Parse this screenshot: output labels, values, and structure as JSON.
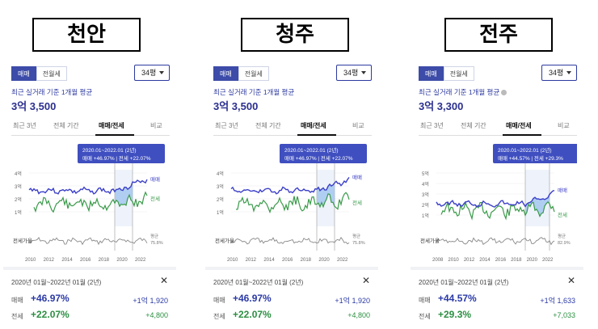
{
  "panels": [
    {
      "city": "천안",
      "segments": [
        "매매",
        "전월세"
      ],
      "pyeong": "34평",
      "subtitle": "최근 실거래 기준 1개월 평균",
      "price": "3억 3,500",
      "tabs": [
        "최근 3년",
        "전체 기간",
        "매매/전세",
        "비교"
      ],
      "active_tab": "매매/전세",
      "tooltip_line1": "2020.01~2022.01 (2년)",
      "tooltip_line2": "매매 +46.97% | 전세 +22.07%",
      "y_ticks": [
        "4억",
        "3억",
        "2억",
        "1억"
      ],
      "x_ticks": [
        "2010",
        "2012",
        "2014",
        "2016",
        "2018",
        "2020",
        "2022"
      ],
      "legend_sale": "매매",
      "legend_jeon": "전세",
      "ratio_axis_label": "전세가율",
      "ratio_label": "평균",
      "ratio_value": "75.8%",
      "summary_period": "2020년 01월~2022년 01월 (2년)",
      "sale_label": "매매",
      "sale_pct": "+46.97%",
      "sale_amount": "+1억 1,920",
      "jeon_label": "전세",
      "jeon_pct": "+22.07%",
      "jeon_amount": "+4,800",
      "close": "✕"
    },
    {
      "city": "청주",
      "segments": [
        "매매",
        "전월세"
      ],
      "pyeong": "34평",
      "subtitle": "최근 실거래 기준 1개월 평균",
      "price": "3억 3,500",
      "tabs": [
        "최근 3년",
        "전체 기간",
        "매매/전세",
        "비교"
      ],
      "active_tab": "매매/전세",
      "tooltip_line1": "2020.01~2022.01 (2년)",
      "tooltip_line2": "매매 +46.97% | 전세 +22.07%",
      "y_ticks": [
        "4억",
        "3억",
        "2억",
        "1억"
      ],
      "x_ticks": [
        "2010",
        "2012",
        "2014",
        "2016",
        "2018",
        "2020",
        "2022"
      ],
      "legend_sale": "매매",
      "legend_jeon": "전세",
      "ratio_axis_label": "전세가율",
      "ratio_label": "평균",
      "ratio_value": "75.8%",
      "summary_period": "2020년 01월~2022년 01월 (2년)",
      "sale_label": "매매",
      "sale_pct": "+46.97%",
      "sale_amount": "+1억 1,920",
      "jeon_label": "전세",
      "jeon_pct": "+22.07%",
      "jeon_amount": "+4,800",
      "close": "✕"
    },
    {
      "city": "전주",
      "segments": [
        "매매",
        "전월세"
      ],
      "pyeong": "34평",
      "subtitle": "최근 실거래 기준 1개월 평균",
      "price": "3억 3,300",
      "tabs": [
        "최근 3년",
        "전체 기간",
        "매매/전세",
        "비교"
      ],
      "active_tab": "매매/전세",
      "tooltip_line1": "2020.01~2022.01 (2년)",
      "tooltip_line2": "매매 +44.57% | 전세 +29.3%",
      "y_ticks": [
        "5억",
        "4억",
        "3억",
        "2억",
        "1억"
      ],
      "x_ticks": [
        "2008",
        "2010",
        "2012",
        "2014",
        "2016",
        "2018",
        "2020",
        "2022"
      ],
      "legend_sale": "매매",
      "legend_jeon": "전세",
      "ratio_axis_label": "전세가율",
      "ratio_label": "평균",
      "ratio_value": "82.9%",
      "summary_period": "2020년 01월~2022년 01월 (2년)",
      "sale_label": "매매",
      "sale_pct": "+44.57%",
      "sale_amount": "+1억 1,633",
      "jeon_label": "전세",
      "jeon_pct": "+29.3%",
      "jeon_amount": "+7,033",
      "close": "✕"
    }
  ],
  "colors": {
    "sale_line": "#3b3fc7",
    "jeon_line": "#3a9a4a",
    "tooltip_bg": "#3f4fc0",
    "highlight_fill": "#9fc4f0",
    "ratio_line": "#888888"
  }
}
